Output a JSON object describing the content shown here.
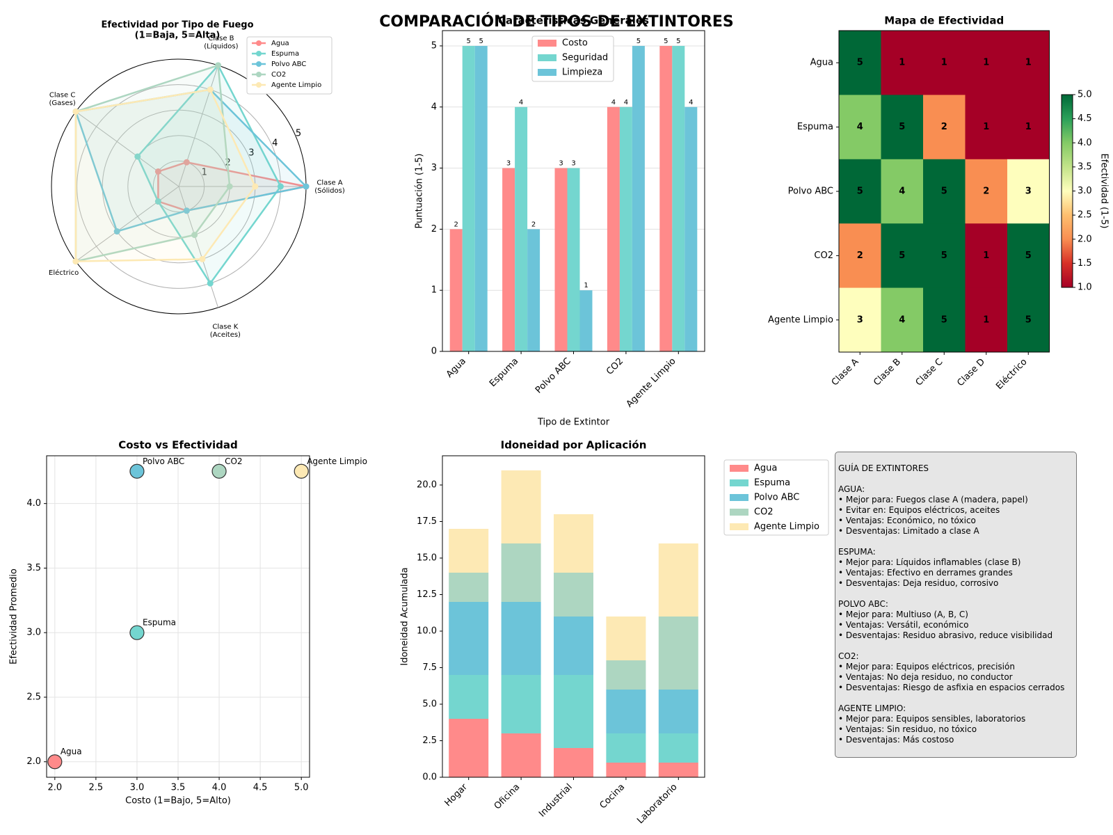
{
  "title": "COMPARACIÓN DE TIPOS DE EXTINTORES",
  "colors": {
    "agua": "#ff8a8a",
    "espuma": "#74d6cf",
    "polvo": "#6cc4d9",
    "co2": "#add6c1",
    "limpio": "#fde9b4",
    "costo": "#ff8a8a",
    "seguridad": "#74d6cf",
    "limpieza": "#6cc4d9",
    "good": "#00683a",
    "bad": "#a50026"
  },
  "chart_data": [
    {
      "type": "radar",
      "title": "Efectividad por Tipo de Fuego\n(1=Baja, 5=Alta)",
      "axes": [
        "Clase A\n(Sólidos)",
        "Clase B\n(Líquidos)",
        "Clase C\n(Gases)",
        "Eléctrico",
        "Clase K\n(Aceites)"
      ],
      "rmax": 5,
      "rticks": [
        "1",
        "2",
        "3",
        "4",
        "5"
      ],
      "series": [
        {
          "name": "Agua",
          "values": [
            5,
            1,
            1,
            1,
            1
          ]
        },
        {
          "name": "Espuma",
          "values": [
            4,
            5,
            2,
            1,
            4
          ]
        },
        {
          "name": "Polvo ABC",
          "values": [
            5,
            4,
            5,
            3,
            1
          ]
        },
        {
          "name": "CO2",
          "values": [
            2,
            5,
            5,
            5,
            2
          ]
        },
        {
          "name": "Agente Limpio",
          "values": [
            3,
            4,
            5,
            5,
            3
          ]
        }
      ],
      "legend": "upper-right"
    },
    {
      "type": "bar",
      "title": "Características Generales",
      "xlabel": "Tipo de Extintor",
      "ylabel": "Puntuación (1-5)",
      "ylim": [
        0,
        5.25
      ],
      "yticks": [
        "0",
        "1",
        "2",
        "3",
        "4",
        "5"
      ],
      "categories": [
        "Agua",
        "Espuma",
        "Polvo ABC",
        "CO2",
        "Agente Limpio"
      ],
      "series": [
        {
          "name": "Costo",
          "values": [
            2,
            3,
            3,
            4,
            5
          ]
        },
        {
          "name": "Seguridad",
          "values": [
            5,
            4,
            3,
            4,
            5
          ]
        },
        {
          "name": "Limpieza",
          "values": [
            5,
            2,
            1,
            5,
            4
          ]
        }
      ],
      "legend": "upper-center"
    },
    {
      "type": "heatmap",
      "title": "Mapa de Efectividad",
      "rows": [
        "Agua",
        "Espuma",
        "Polvo ABC",
        "CO2",
        "Agente Limpio"
      ],
      "cols": [
        "Clase A",
        "Clase B",
        "Clase C",
        "Clase D",
        "Eléctrico"
      ],
      "values": [
        [
          5,
          1,
          1,
          1,
          1
        ],
        [
          4,
          5,
          2,
          1,
          1
        ],
        [
          5,
          4,
          5,
          2,
          3
        ],
        [
          2,
          5,
          5,
          1,
          5
        ],
        [
          3,
          4,
          5,
          1,
          5
        ]
      ],
      "colorbar_label": "Efectividad (1-5)",
      "colorbar_range": [
        1,
        5
      ],
      "colorbar_ticks": [
        "1.0",
        "1.5",
        "2.0",
        "2.5",
        "3.0",
        "3.5",
        "4.0",
        "4.5",
        "5.0"
      ]
    },
    {
      "type": "scatter",
      "title": "Costo vs Efectividad",
      "xlabel": "Costo (1=Bajo, 5=Alto)",
      "ylabel": "Efectividad Promedio",
      "xlim": [
        1.9,
        5.1
      ],
      "ylim": [
        1.88,
        4.37
      ],
      "xticks": [
        "2.0",
        "2.5",
        "3.0",
        "3.5",
        "4.0",
        "4.5",
        "5.0"
      ],
      "yticks": [
        "2.0",
        "2.5",
        "3.0",
        "3.5",
        "4.0"
      ],
      "points": [
        {
          "label": "Agua",
          "x": 2,
          "y": 2.0
        },
        {
          "label": "Espuma",
          "x": 3,
          "y": 3.0
        },
        {
          "label": "Polvo ABC",
          "x": 3,
          "y": 4.25
        },
        {
          "label": "CO2",
          "x": 4,
          "y": 4.25
        },
        {
          "label": "Agente Limpio",
          "x": 5,
          "y": 4.25
        }
      ],
      "grid": true
    },
    {
      "type": "stacked-bar",
      "title": "Idoneidad por Aplicación",
      "ylabel": "Idoneidad Acumulada",
      "ylim": [
        0,
        22
      ],
      "yticks": [
        "0.0",
        "2.5",
        "5.0",
        "7.5",
        "10.0",
        "12.5",
        "15.0",
        "17.5",
        "20.0"
      ],
      "categories": [
        "Hogar",
        "Oficina",
        "Industrial",
        "Cocina",
        "Laboratorio"
      ],
      "series": [
        {
          "name": "Agua",
          "values": [
            4,
            3,
            2,
            1,
            1
          ]
        },
        {
          "name": "Espuma",
          "values": [
            3,
            4,
            5,
            2,
            2
          ]
        },
        {
          "name": "Polvo ABC",
          "values": [
            5,
            5,
            4,
            3,
            3
          ]
        },
        {
          "name": "CO2",
          "values": [
            2,
            4,
            3,
            2,
            5
          ]
        },
        {
          "name": "Agente Limpio",
          "values": [
            3,
            5,
            4,
            3,
            5
          ]
        }
      ],
      "legend": "outside-right"
    }
  ],
  "guide": {
    "lines": [
      "GUÍA DE EXTINTORES",
      "",
      "AGUA:",
      "• Mejor para: Fuegos clase A (madera, papel)",
      "• Evitar en: Equipos eléctricos, aceites",
      "• Ventajas: Económico, no tóxico",
      "• Desventajas: Limitado a clase A",
      "",
      "ESPUMA:",
      "• Mejor para: Líquidos inflamables (clase B)",
      "• Ventajas: Efectivo en derrames grandes",
      "• Desventajas: Deja residuo, corrosivo",
      "",
      "POLVO ABC:",
      "• Mejor para: Multiuso (A, B, C)",
      "• Ventajas: Versátil, económico",
      "• Desventajas: Residuo abrasivo, reduce visibilidad",
      "",
      "CO2:",
      "• Mejor para: Equipos eléctricos, precisión",
      "• Ventajas: No deja residuo, no conductor",
      "• Desventajas: Riesgo de asfixia en espacios cerrados",
      "",
      "AGENTE LIMPIO:",
      "• Mejor para: Equipos sensibles, laboratorios",
      "• Ventajas: Sin residuo, no tóxico",
      "• Desventajas: Más costoso"
    ]
  }
}
